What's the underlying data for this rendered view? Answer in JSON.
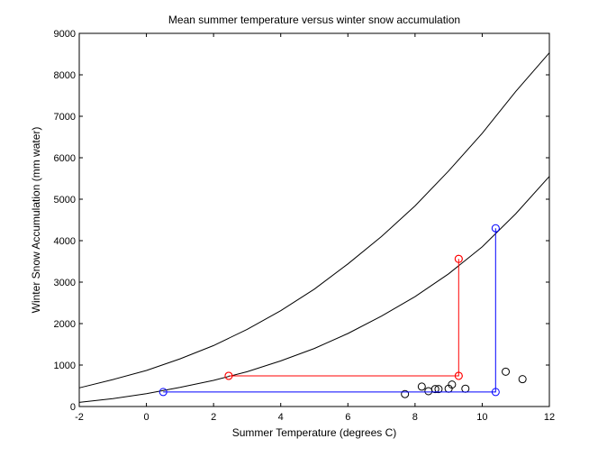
{
  "chart_data": {
    "type": "line",
    "title": "Mean summer temperature versus winter snow accumulation",
    "xlabel": "Summer Temperature (degrees C)",
    "ylabel": "Winter Snow Accumulation (mm water)",
    "xlim": [
      -2,
      12
    ],
    "ylim": [
      0,
      9000
    ],
    "xticks": [
      -2,
      0,
      2,
      4,
      6,
      8,
      10,
      12
    ],
    "yticks": [
      0,
      1000,
      2000,
      3000,
      4000,
      5000,
      6000,
      7000,
      8000,
      9000
    ],
    "grid": false,
    "legend": "none",
    "series": [
      {
        "color": "#000000",
        "style": "line",
        "x": [
          -2,
          -1,
          0,
          1,
          2,
          3,
          4,
          5,
          6,
          7,
          8,
          9,
          10,
          11,
          12
        ],
        "values": [
          450,
          650,
          870,
          1150,
          1470,
          1860,
          2310,
          2830,
          3440,
          4100,
          4840,
          5680,
          6590,
          7600,
          8530
        ]
      },
      {
        "color": "#000000",
        "style": "line",
        "x": [
          -2,
          -1,
          0,
          1,
          2,
          3,
          4,
          5,
          6,
          7,
          8,
          9,
          10,
          11,
          12
        ],
        "values": [
          100,
          190,
          310,
          460,
          630,
          840,
          1100,
          1400,
          1760,
          2180,
          2650,
          3200,
          3850,
          4650,
          5550
        ]
      },
      {
        "color": "#000000",
        "style": "markers",
        "x": [
          7.7,
          8.2,
          8.4,
          8.6,
          8.7,
          9.0,
          9.1,
          9.5,
          10.7,
          11.2
        ],
        "values": [
          300,
          480,
          370,
          420,
          420,
          430,
          530,
          430,
          840,
          660
        ]
      },
      {
        "color": "#ff0000",
        "style": "line-markers",
        "x": [
          2.45,
          9.3,
          9.3
        ],
        "values": [
          740,
          740,
          3560
        ]
      },
      {
        "color": "#ff0000",
        "style": "markers",
        "x": [
          2.45,
          9.3,
          9.3
        ],
        "values": [
          740,
          740,
          3560
        ]
      },
      {
        "color": "#0000ff",
        "style": "line",
        "x": [
          0.5,
          10.4,
          10.4
        ],
        "values": [
          350,
          350,
          4300
        ]
      },
      {
        "color": "#0000ff",
        "style": "markers",
        "x": [
          0.5,
          10.4,
          10.4
        ],
        "values": [
          350,
          350,
          4300
        ]
      }
    ]
  }
}
